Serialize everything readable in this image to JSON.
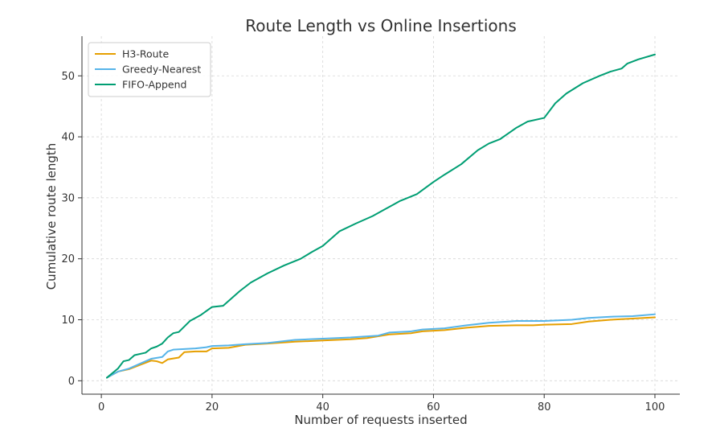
{
  "chart_data": {
    "type": "line",
    "title": "Route Length vs Online Insertions",
    "xlabel": "Number of requests inserted",
    "ylabel": "Cumulative route length",
    "xlim": [
      -3.5,
      104.5
    ],
    "ylim": [
      -2.2,
      56.5
    ],
    "xticks": [
      0,
      20,
      40,
      60,
      80,
      100
    ],
    "yticks": [
      0,
      10,
      20,
      30,
      40,
      50
    ],
    "grid": true,
    "legend_position": "top-left",
    "series": [
      {
        "name": "H3-Route",
        "color": "#E69F00",
        "x": [
          1,
          3,
          5,
          7,
          9,
          10,
          11,
          12,
          14,
          15,
          17,
          19,
          20,
          23,
          26,
          30,
          35,
          40,
          45,
          48,
          50,
          52,
          56,
          58,
          62,
          66,
          70,
          75,
          78,
          80,
          85,
          88,
          92,
          96,
          100
        ],
        "y": [
          0.5,
          1.5,
          1.9,
          2.6,
          3.3,
          3.2,
          2.9,
          3.5,
          3.8,
          4.7,
          4.8,
          4.8,
          5.3,
          5.4,
          5.9,
          6.1,
          6.4,
          6.6,
          6.8,
          7.0,
          7.3,
          7.6,
          7.8,
          8.1,
          8.3,
          8.7,
          9.0,
          9.1,
          9.1,
          9.2,
          9.3,
          9.7,
          10.0,
          10.2,
          10.4
        ]
      },
      {
        "name": "Greedy-Nearest",
        "color": "#56B4E9",
        "x": [
          1,
          3,
          5,
          7,
          8,
          9,
          11,
          12,
          13,
          15,
          17,
          19,
          20,
          23,
          26,
          30,
          35,
          40,
          45,
          50,
          52,
          56,
          58,
          62,
          66,
          70,
          75,
          80,
          85,
          88,
          92,
          96,
          100
        ],
        "y": [
          0.5,
          1.5,
          2.0,
          2.8,
          3.2,
          3.6,
          3.9,
          4.8,
          5.1,
          5.2,
          5.3,
          5.5,
          5.7,
          5.8,
          6.0,
          6.2,
          6.7,
          6.9,
          7.1,
          7.4,
          7.9,
          8.1,
          8.4,
          8.6,
          9.1,
          9.5,
          9.8,
          9.8,
          10.0,
          10.3,
          10.5,
          10.6,
          10.9
        ]
      },
      {
        "name": "FIFO-Append",
        "color": "#009E73",
        "x": [
          1,
          3,
          4,
          5,
          6,
          8,
          9,
          10,
          11,
          12,
          13,
          14,
          16,
          18,
          20,
          22,
          25,
          27,
          30,
          33,
          36,
          38,
          40,
          43,
          46,
          49,
          51,
          54,
          57,
          60,
          62,
          65,
          68,
          70,
          72,
          75,
          77,
          80,
          82,
          84,
          87,
          90,
          92,
          94,
          95,
          97,
          100
        ],
        "y": [
          0.5,
          2.0,
          3.2,
          3.4,
          4.2,
          4.6,
          5.3,
          5.6,
          6.1,
          7.1,
          7.8,
          8.0,
          9.8,
          10.8,
          12.1,
          12.3,
          14.7,
          16.1,
          17.6,
          18.9,
          20.0,
          21.1,
          22.1,
          24.5,
          25.8,
          27.0,
          28.0,
          29.5,
          30.6,
          32.6,
          33.8,
          35.5,
          37.8,
          38.9,
          39.6,
          41.5,
          42.5,
          43.1,
          45.5,
          47.1,
          48.8,
          50.0,
          50.7,
          51.2,
          52.0,
          52.7,
          53.5
        ]
      }
    ]
  }
}
